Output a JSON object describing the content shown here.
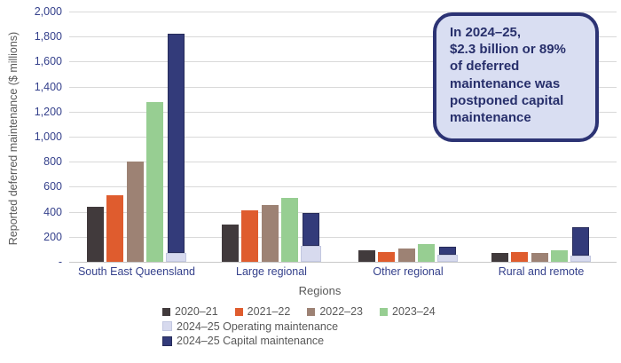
{
  "chart_data": {
    "type": "bar",
    "title": "",
    "categories": [
      "South East Queensland",
      "Large regional",
      "Other regional",
      "Rural and remote"
    ],
    "series": [
      {
        "name": "2020–21",
        "color": "#413a3c",
        "values": [
          440,
          300,
          90,
          70
        ]
      },
      {
        "name": "2021–22",
        "color": "#df5c2e",
        "values": [
          530,
          410,
          80,
          80
        ]
      },
      {
        "name": "2022–23",
        "color": "#9d8274",
        "values": [
          800,
          455,
          110,
          70
        ]
      },
      {
        "name": "2023–24",
        "color": "#97ce92",
        "values": [
          1280,
          510,
          140,
          95
        ]
      },
      {
        "name": "2024–25 Operating maintenance",
        "color": "#d7daee",
        "border": "#c2c7e0",
        "values": [
          70,
          130,
          55,
          50
        ],
        "stack": "2024-25"
      },
      {
        "name": "2024–25 Capital maintenance",
        "color": "#333b7a",
        "border": "#272c5a",
        "values": [
          1750,
          260,
          65,
          230
        ],
        "stack": "2024-25"
      }
    ],
    "xlabel": "Regions",
    "ylabel": "Reported deferred maintenance ($ millions)",
    "ylim": [
      0,
      2000
    ],
    "ytick_interval": 200,
    "ytick_labels": [
      "2,000",
      "1,800",
      "1,600",
      "1,400",
      "1,200",
      "1,000",
      "800",
      "600",
      "400",
      "200",
      "-"
    ],
    "grid": true,
    "legend_position": "bottom",
    "legend_rows": [
      [
        "2020–21",
        "2021–22",
        "2022–23",
        "2023–24"
      ],
      [
        "2024–25 Operating maintenance"
      ],
      [
        "2024–25 Capital maintenance"
      ]
    ]
  },
  "annotation": {
    "text": "In 2024–25,\n$2.3 billion or 89%\nof deferred\nmaintenance was\npostponed capital\nmaintenance",
    "fill_color": "#d9def2",
    "border_color": "#2c3374",
    "text_color": "#272f6b"
  },
  "style_colors": {
    "axis_tick_label": "#35418c",
    "axis_title": "#595959",
    "gridline": "#d9d9d9"
  }
}
